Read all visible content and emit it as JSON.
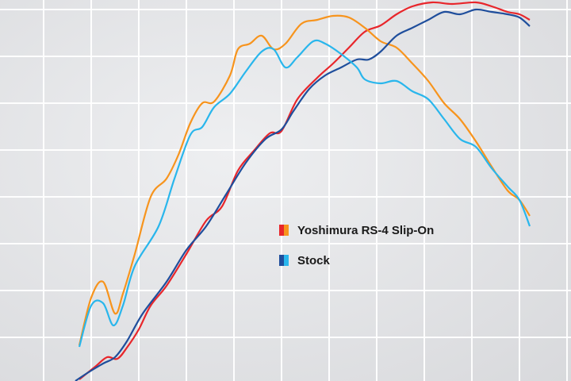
{
  "chart_data": {
    "type": "line",
    "xlim": [
      0,
      72
    ],
    "ylim": [
      0,
      48
    ],
    "series": [
      {
        "name": "Yoshimura RS-4 Slip-On",
        "colors": [
          "#e8262b",
          "#f7941d"
        ],
        "lines": [
          {
            "color": "#e8262b",
            "x": [
              10,
              12,
              13.5,
              14.8,
              16,
              17.5,
              19,
              21,
              23.5,
              26,
              28,
              30,
              32,
              34,
              35.5,
              37.5,
              40,
              42,
              44,
              46,
              48,
              50,
              52,
              54.5,
              57,
              60,
              62,
              64,
              65.5,
              66.8
            ],
            "values": [
              0.2,
              1.8,
              3,
              2.8,
              4.2,
              6.5,
              9.5,
              12,
              16,
              20.2,
              22,
              26.5,
              29,
              31.2,
              31.5,
              35.5,
              38.2,
              40,
              42,
              44,
              44.8,
              46.2,
              47.2,
              47.7,
              47.5,
              47.7,
              47.2,
              46.5,
              46.2,
              45.5
            ]
          },
          {
            "color": "#f7941d",
            "x": [
              10,
              11.5,
              13,
              14.5,
              15.5,
              17,
              19,
              21,
              22.5,
              24,
              25.5,
              27,
              29,
              30,
              31.5,
              33,
              34.5,
              36,
              38,
              40,
              42,
              44,
              46,
              48,
              50,
              52,
              54,
              56,
              58,
              60,
              62,
              64,
              65.5,
              66.8
            ],
            "values": [
              4.5,
              10.5,
              12.5,
              8.5,
              11,
              16,
              23.2,
              25.5,
              28.5,
              32.5,
              35,
              35.2,
              38.5,
              41.8,
              42.5,
              43.5,
              41.8,
              42.5,
              45,
              45.5,
              46,
              45.8,
              44.5,
              42.8,
              42,
              40,
              37.8,
              35,
              33,
              30.2,
              27,
              24,
              22.8,
              20.8
            ]
          }
        ]
      },
      {
        "name": "Stock",
        "colors": [
          "#1f4e9c",
          "#29b6ec"
        ],
        "lines": [
          {
            "color": "#1f4e9c",
            "x": [
              9.5,
              11,
              13,
              14.5,
              16,
              18,
              21,
              23.5,
              26,
              28.5,
              31,
              33.5,
              35.5,
              37,
              39,
              41,
              43,
              45,
              46.5,
              48,
              50,
              52,
              54,
              56,
              58,
              60,
              62,
              64,
              65.5,
              66.8
            ],
            "values": [
              0,
              1,
              2.2,
              3,
              5,
              8.5,
              12.5,
              16.5,
              19.5,
              23.5,
              27.5,
              30.5,
              31.7,
              34,
              36.8,
              38.5,
              39.5,
              40.5,
              40.5,
              41.5,
              43.5,
              44.5,
              45.5,
              46.5,
              46.2,
              46.8,
              46.5,
              46.2,
              45.8,
              44.7
            ]
          },
          {
            "color": "#29b6ec",
            "x": [
              10,
              11.5,
              13,
              14.3,
              15.5,
              17,
              20,
              22,
              24,
              25.5,
              27,
              29,
              31,
              33,
              34.5,
              36,
              37.5,
              39.5,
              41,
              43,
              45,
              46,
              48,
              50,
              52,
              54,
              56,
              58,
              60,
              62,
              64,
              65.5,
              66.8
            ],
            "values": [
              4.3,
              9.5,
              9.8,
              7,
              9.5,
              14.5,
              19.5,
              25.5,
              31,
              32,
              34.5,
              36.2,
              39,
              41.5,
              41.8,
              39.5,
              40.8,
              42.8,
              42.5,
              41.2,
              39.5,
              38,
              37.5,
              37.8,
              36.5,
              35.5,
              33,
              30.5,
              29.5,
              26.8,
              24.5,
              22.8,
              19.5
            ]
          }
        ]
      }
    ]
  }
}
